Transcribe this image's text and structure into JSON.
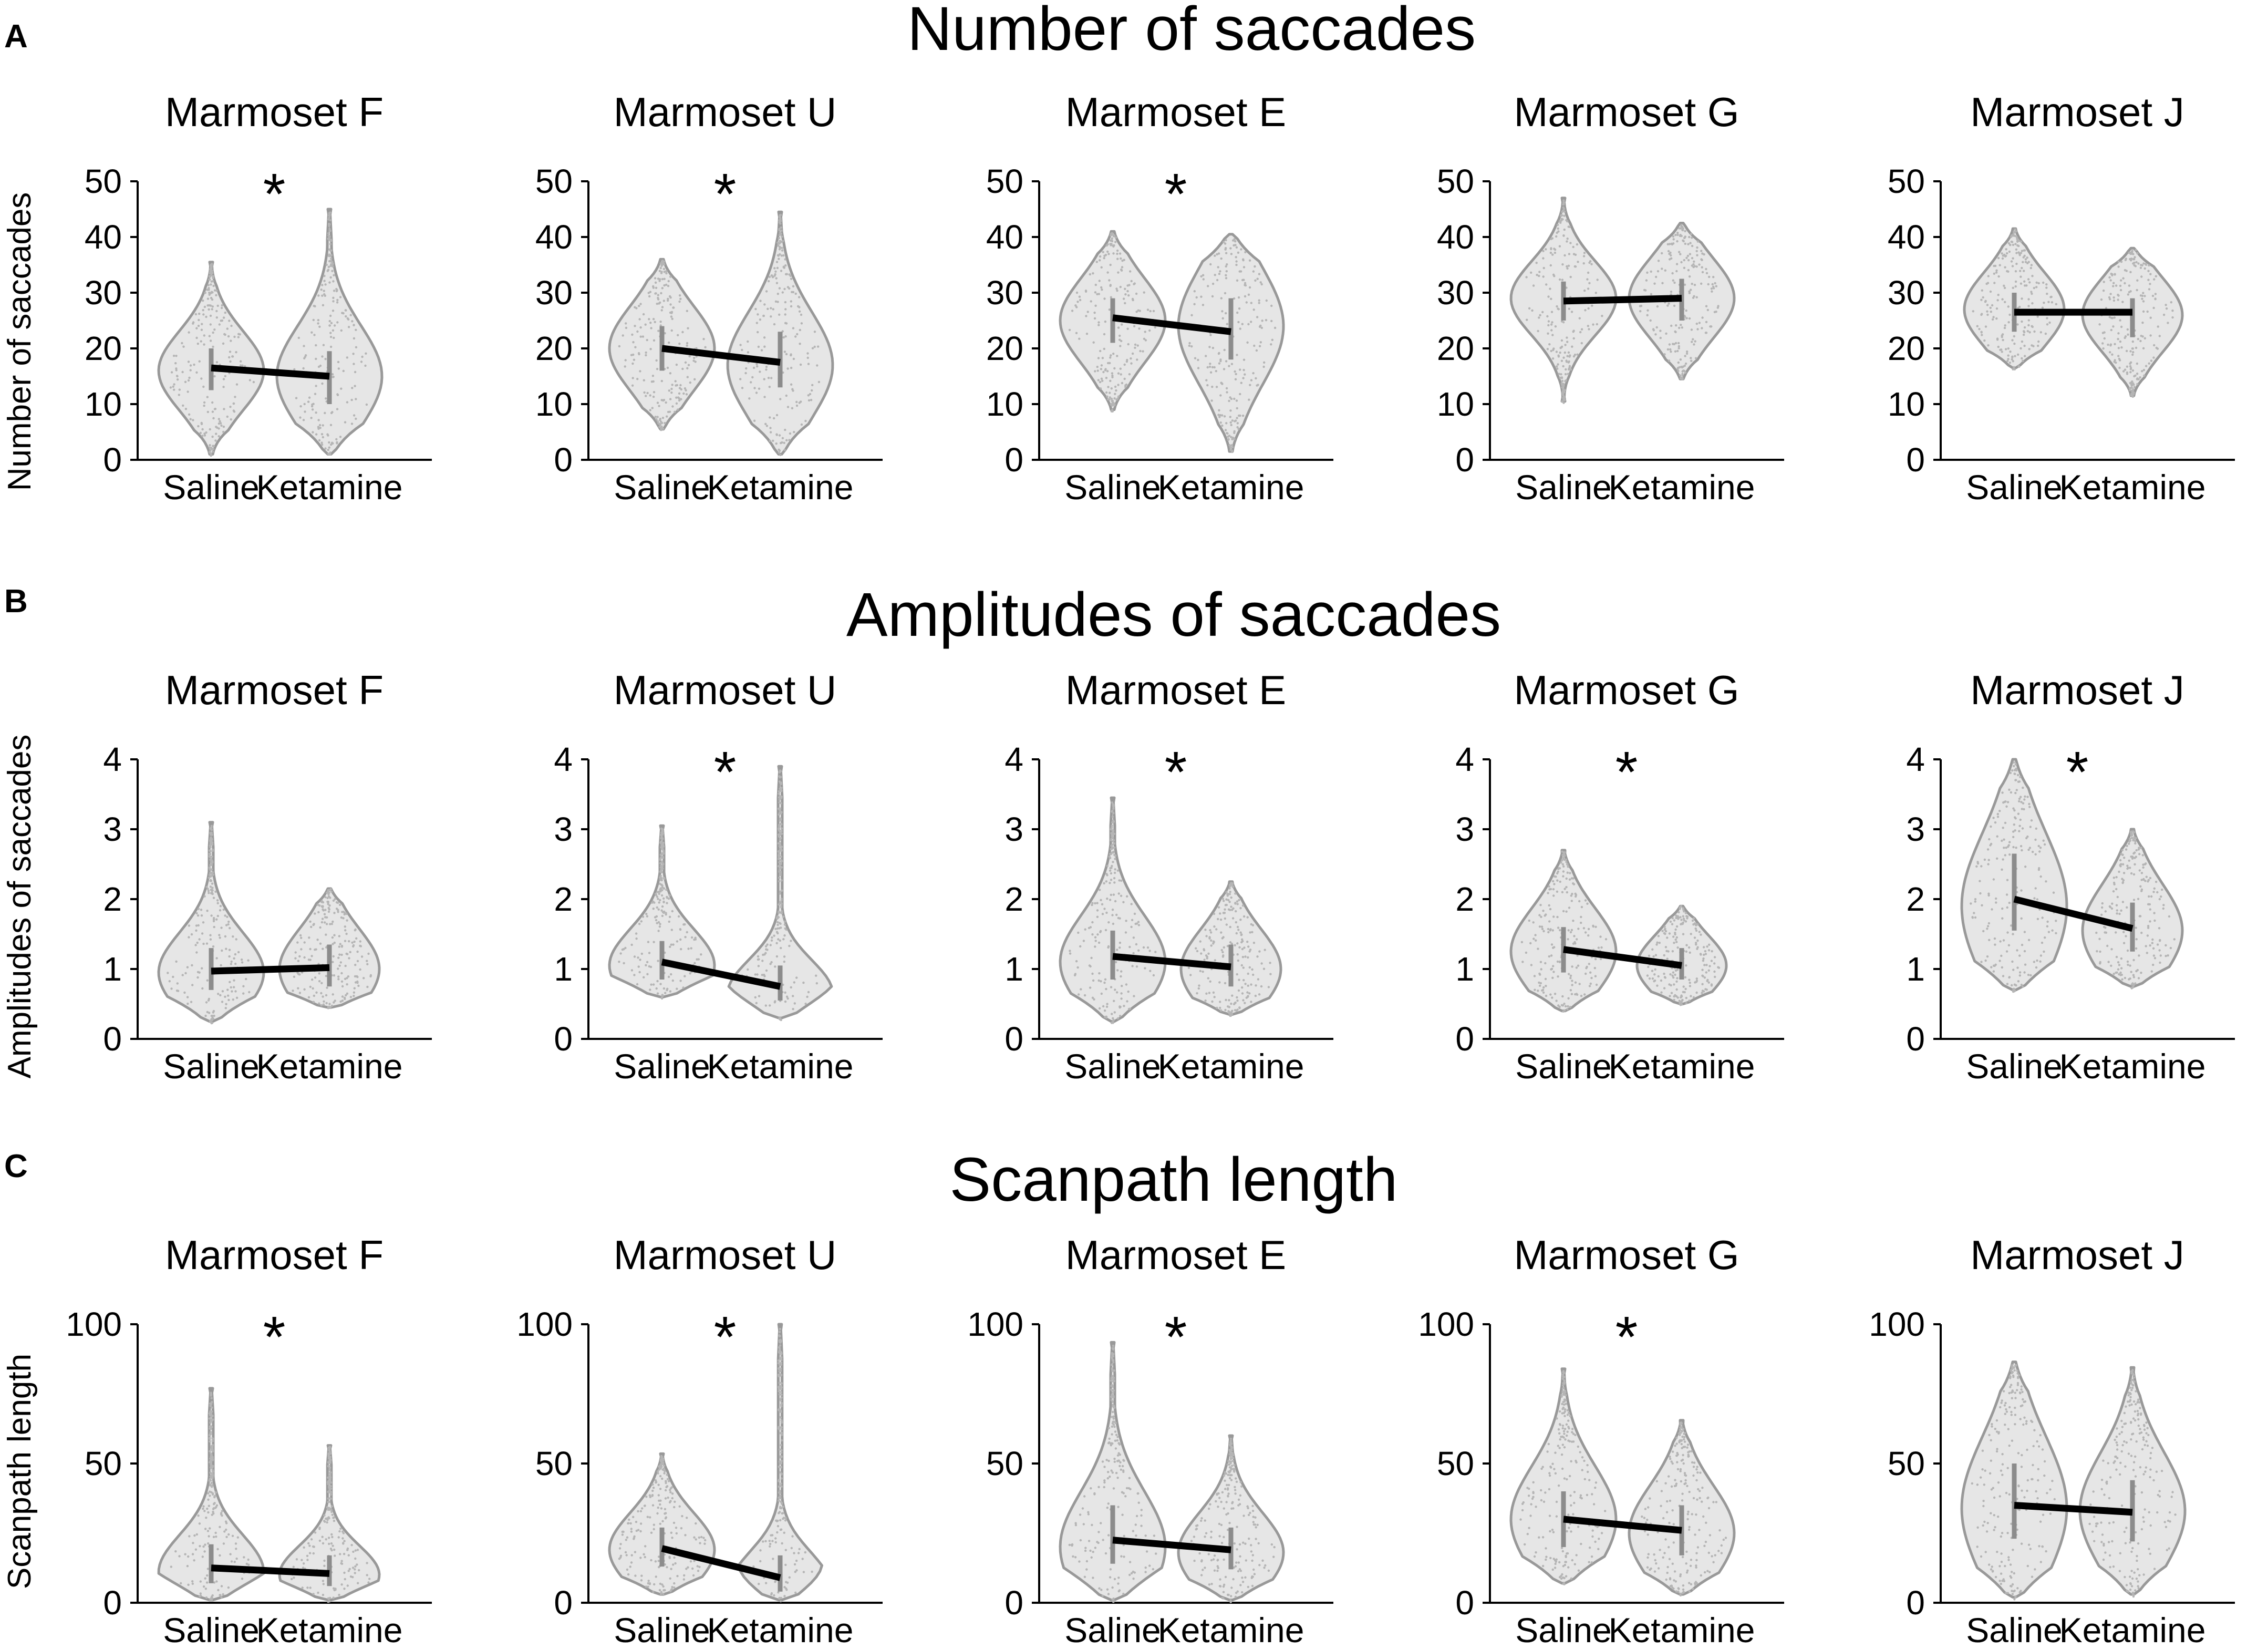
{
  "rows": [
    {
      "letter": "A",
      "title": "Number of saccades",
      "ylabel": "Number of saccades",
      "ylim": [
        0,
        50
      ],
      "yticks": [
        0,
        10,
        20,
        30,
        40,
        50
      ],
      "categories": [
        "Saline",
        "Ketamine"
      ]
    },
    {
      "letter": "B",
      "title": "Amplitudes of saccades",
      "ylabel": "Amplitudes of saccades",
      "ylim": [
        0,
        4
      ],
      "yticks": [
        0,
        1,
        2,
        3,
        4
      ],
      "categories": [
        "Saline",
        "Ketamine"
      ]
    },
    {
      "letter": "C",
      "title": "Scanpath length",
      "ylabel": "Scanpath length",
      "ylim": [
        0,
        100
      ],
      "yticks": [
        0,
        50,
        100
      ],
      "categories": [
        "Saline",
        "Ketamine"
      ]
    }
  ],
  "chart_data": [
    {
      "type": "violin",
      "row": 0,
      "col": 0,
      "title": "Marmoset F",
      "significant": true,
      "categories": [
        "Saline",
        "Ketamine"
      ],
      "ylim": [
        0,
        50
      ],
      "violins": [
        {
          "min": 1,
          "max": 35.5,
          "median": 16.5,
          "q1": 12.5,
          "q3": 20,
          "peak": 16,
          "width": 1.0
        },
        {
          "min": 1,
          "max": 45,
          "median": 15,
          "q1": 10,
          "q3": 19.5,
          "peak": 15,
          "width": 1.0
        }
      ]
    },
    {
      "type": "violin",
      "row": 0,
      "col": 1,
      "title": "Marmoset U",
      "significant": true,
      "categories": [
        "Saline",
        "Ketamine"
      ],
      "ylim": [
        0,
        50
      ],
      "violins": [
        {
          "min": 5.5,
          "max": 36,
          "median": 20,
          "q1": 16,
          "q3": 24,
          "peak": 20,
          "width": 1.0
        },
        {
          "min": 1,
          "max": 44.5,
          "median": 17.5,
          "q1": 13,
          "q3": 23,
          "peak": 17,
          "width": 1.0
        }
      ]
    },
    {
      "type": "violin",
      "row": 0,
      "col": 2,
      "title": "Marmoset E",
      "significant": true,
      "categories": [
        "Saline",
        "Ketamine"
      ],
      "ylim": [
        0,
        50
      ],
      "violins": [
        {
          "min": 9,
          "max": 41,
          "median": 25.5,
          "q1": 21,
          "q3": 29,
          "peak": 25,
          "width": 1.0
        },
        {
          "min": 1.5,
          "max": 40.5,
          "median": 23,
          "q1": 18,
          "q3": 29,
          "peak": 24,
          "width": 1.0
        }
      ]
    },
    {
      "type": "violin",
      "row": 0,
      "col": 3,
      "title": "Marmoset G",
      "significant": false,
      "categories": [
        "Saline",
        "Ketamine"
      ],
      "ylim": [
        0,
        50
      ],
      "violins": [
        {
          "min": 10.5,
          "max": 47,
          "median": 28.5,
          "q1": 25,
          "q3": 32,
          "peak": 29,
          "width": 1.0
        },
        {
          "min": 14.5,
          "max": 42.5,
          "median": 29,
          "q1": 25,
          "q3": 32.5,
          "peak": 29,
          "width": 1.0
        }
      ]
    },
    {
      "type": "violin",
      "row": 0,
      "col": 4,
      "title": "Marmoset J",
      "significant": false,
      "categories": [
        "Saline",
        "Ketamine"
      ],
      "ylim": [
        0,
        50
      ],
      "violins": [
        {
          "min": 16.5,
          "max": 41.5,
          "median": 26.5,
          "q1": 23,
          "q3": 30,
          "peak": 27,
          "width": 0.95
        },
        {
          "min": 11.5,
          "max": 38,
          "median": 26.5,
          "q1": 22,
          "q3": 29,
          "peak": 26,
          "width": 0.95
        }
      ]
    },
    {
      "type": "violin",
      "row": 1,
      "col": 0,
      "title": "Marmoset F",
      "significant": false,
      "categories": [
        "Saline",
        "Ketamine"
      ],
      "ylim": [
        0,
        4
      ],
      "violins": [
        {
          "min": 0.25,
          "max": 3.1,
          "median": 0.97,
          "q1": 0.7,
          "q3": 1.3,
          "peak": 0.95,
          "width": 1.0
        },
        {
          "min": 0.45,
          "max": 2.15,
          "median": 1.02,
          "q1": 0.75,
          "q3": 1.35,
          "peak": 1.0,
          "width": 0.95
        }
      ]
    },
    {
      "type": "violin",
      "row": 1,
      "col": 1,
      "title": "Marmoset U",
      "significant": true,
      "categories": [
        "Saline",
        "Ketamine"
      ],
      "ylim": [
        0,
        4
      ],
      "violins": [
        {
          "min": 0.6,
          "max": 3.05,
          "median": 1.1,
          "q1": 0.85,
          "q3": 1.4,
          "peak": 1.05,
          "width": 1.0
        },
        {
          "min": 0.3,
          "max": 3.9,
          "median": 0.75,
          "q1": 0.55,
          "q3": 1.05,
          "peak": 0.65,
          "width": 1.0
        }
      ]
    },
    {
      "type": "violin",
      "row": 1,
      "col": 2,
      "title": "Marmoset E",
      "significant": true,
      "categories": [
        "Saline",
        "Ketamine"
      ],
      "ylim": [
        0,
        4
      ],
      "violins": [
        {
          "min": 0.25,
          "max": 3.45,
          "median": 1.18,
          "q1": 0.85,
          "q3": 1.55,
          "peak": 1.1,
          "width": 1.0
        },
        {
          "min": 0.35,
          "max": 2.25,
          "median": 1.03,
          "q1": 0.75,
          "q3": 1.35,
          "peak": 1.0,
          "width": 0.95
        }
      ]
    },
    {
      "type": "violin",
      "row": 1,
      "col": 3,
      "title": "Marmoset G",
      "significant": true,
      "categories": [
        "Saline",
        "Ketamine"
      ],
      "ylim": [
        0,
        4
      ],
      "violins": [
        {
          "min": 0.4,
          "max": 2.7,
          "median": 1.28,
          "q1": 0.95,
          "q3": 1.6,
          "peak": 1.25,
          "width": 1.0
        },
        {
          "min": 0.5,
          "max": 1.9,
          "median": 1.05,
          "q1": 0.85,
          "q3": 1.3,
          "peak": 1.05,
          "width": 0.85
        }
      ]
    },
    {
      "type": "violin",
      "row": 1,
      "col": 4,
      "title": "Marmoset J",
      "significant": true,
      "categories": [
        "Saline",
        "Ketamine"
      ],
      "ylim": [
        0,
        4
      ],
      "violins": [
        {
          "min": 0.7,
          "max": 4.0,
          "median": 2.0,
          "q1": 1.55,
          "q3": 2.65,
          "peak": 1.9,
          "width": 1.0
        },
        {
          "min": 0.75,
          "max": 3.0,
          "median": 1.58,
          "q1": 1.25,
          "q3": 1.95,
          "peak": 1.55,
          "width": 0.95
        }
      ]
    },
    {
      "type": "violin",
      "row": 2,
      "col": 0,
      "title": "Marmoset F",
      "significant": true,
      "categories": [
        "Saline",
        "Ketamine"
      ],
      "ylim": [
        0,
        100
      ],
      "violins": [
        {
          "min": 1,
          "max": 77,
          "median": 12.5,
          "q1": 7,
          "q3": 21,
          "peak": 11,
          "width": 1.0
        },
        {
          "min": 1,
          "max": 56.5,
          "median": 10.5,
          "q1": 6,
          "q3": 17,
          "peak": 10,
          "width": 0.95
        }
      ]
    },
    {
      "type": "violin",
      "row": 2,
      "col": 1,
      "title": "Marmoset U",
      "significant": true,
      "categories": [
        "Saline",
        "Ketamine"
      ],
      "ylim": [
        0,
        100
      ],
      "violins": [
        {
          "min": 3,
          "max": 53.5,
          "median": 19.5,
          "q1": 13,
          "q3": 27,
          "peak": 19,
          "width": 1.0
        },
        {
          "min": 1,
          "max": 100,
          "median": 9,
          "q1": 4,
          "q3": 17,
          "peak": 6,
          "width": 0.95
        }
      ]
    },
    {
      "type": "violin",
      "row": 2,
      "col": 2,
      "title": "Marmoset E",
      "significant": true,
      "categories": [
        "Saline",
        "Ketamine"
      ],
      "ylim": [
        0,
        100
      ],
      "violins": [
        {
          "min": 1,
          "max": 93.5,
          "median": 22.5,
          "q1": 14,
          "q3": 35,
          "peak": 20,
          "width": 1.0
        },
        {
          "min": 1,
          "max": 60,
          "median": 19,
          "q1": 12,
          "q3": 27,
          "peak": 18,
          "width": 1.0
        }
      ]
    },
    {
      "type": "violin",
      "row": 2,
      "col": 3,
      "title": "Marmoset G",
      "significant": true,
      "categories": [
        "Saline",
        "Ketamine"
      ],
      "ylim": [
        0,
        100
      ],
      "violins": [
        {
          "min": 7,
          "max": 84,
          "median": 30,
          "q1": 20,
          "q3": 40,
          "peak": 30,
          "width": 1.0
        },
        {
          "min": 3,
          "max": 65.5,
          "median": 26,
          "q1": 17,
          "q3": 35,
          "peak": 25,
          "width": 1.0
        }
      ]
    },
    {
      "type": "violin",
      "row": 2,
      "col": 4,
      "title": "Marmoset J",
      "significant": false,
      "categories": [
        "Saline",
        "Ketamine"
      ],
      "ylim": [
        0,
        100
      ],
      "violins": [
        {
          "min": 2,
          "max": 86.5,
          "median": 35,
          "q1": 23,
          "q3": 50,
          "peak": 34,
          "width": 1.0
        },
        {
          "min": 3,
          "max": 84.5,
          "median": 32.5,
          "q1": 22,
          "q3": 44,
          "peak": 33,
          "width": 1.0
        }
      ]
    }
  ]
}
